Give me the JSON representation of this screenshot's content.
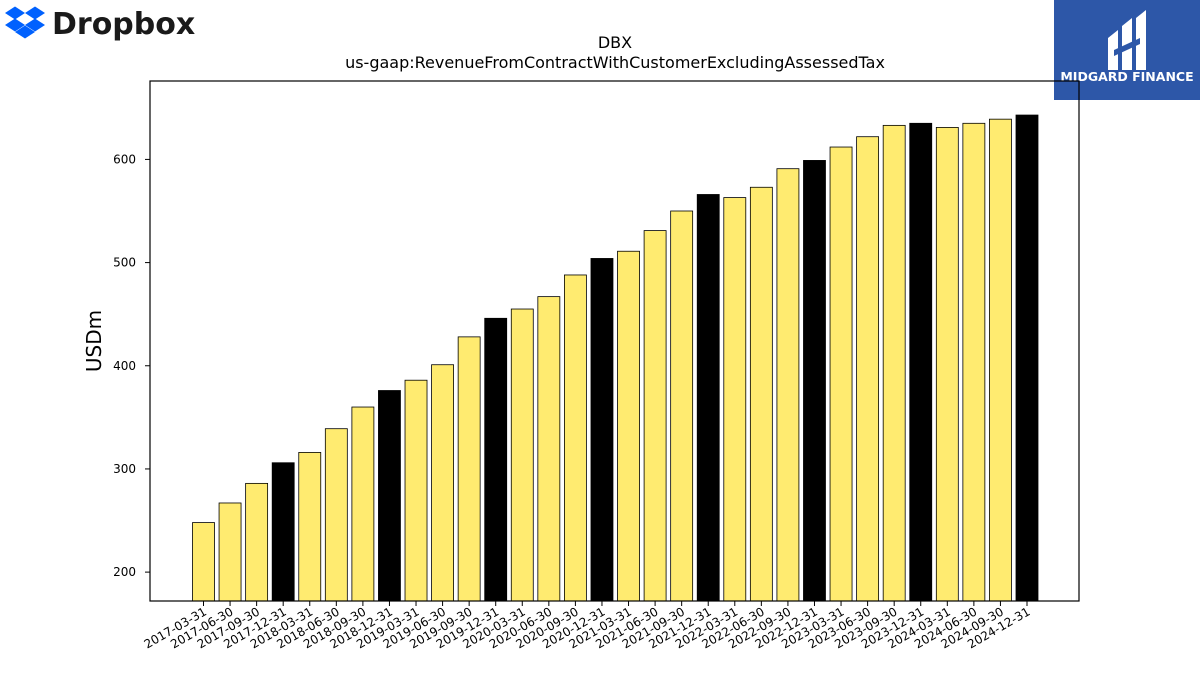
{
  "brand": {
    "left_logo_text": "Dropbox",
    "left_logo_color": "#0061FE",
    "right_logo_text": "MIDGARD FINANCE",
    "right_logo_bg": "#2D57A8"
  },
  "chart_data": {
    "type": "bar",
    "title": "DBX",
    "subtitle": "us-gaap:RevenueFromContractWithCustomerExcludingAssessedTax",
    "ylabel": "USDm",
    "xlabel": "",
    "ylim": [
      172,
      676
    ],
    "yticks": [
      200,
      300,
      400,
      500,
      600
    ],
    "grid": false,
    "legend": "none",
    "colors": {
      "regular": "#FFEB70",
      "year_end": "#000000",
      "edge": "#000000"
    },
    "categories": [
      "2017-03-31",
      "2017-06-30",
      "2017-09-30",
      "2017-12-31",
      "2018-03-31",
      "2018-06-30",
      "2018-09-30",
      "2018-12-31",
      "2019-03-31",
      "2019-06-30",
      "2019-09-30",
      "2019-12-31",
      "2020-03-31",
      "2020-06-30",
      "2020-09-30",
      "2020-12-31",
      "2021-03-31",
      "2021-06-30",
      "2021-09-30",
      "2021-12-31",
      "2022-03-31",
      "2022-06-30",
      "2022-09-30",
      "2022-12-31",
      "2023-03-31",
      "2023-06-30",
      "2023-09-30",
      "2023-12-31",
      "2024-03-31",
      "2024-06-30",
      "2024-09-30",
      "2024-12-31"
    ],
    "values": [
      248,
      267,
      286,
      306,
      316,
      339,
      360,
      376,
      386,
      401,
      428,
      446,
      455,
      467,
      488,
      504,
      511,
      531,
      550,
      566,
      563,
      573,
      591,
      599,
      612,
      622,
      633,
      635,
      631,
      635,
      639,
      643
    ]
  }
}
